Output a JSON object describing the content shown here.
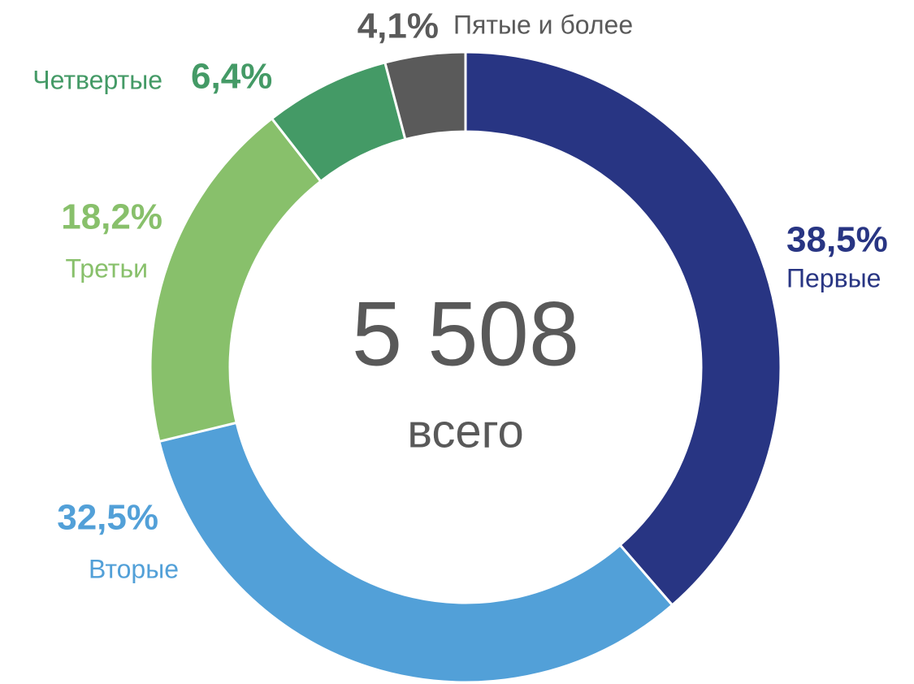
{
  "chart_data": {
    "type": "donut",
    "categories": [
      "Первые",
      "Вторые",
      "Третьи",
      "Четвертые",
      "Пятые и более"
    ],
    "values": [
      38.5,
      32.5,
      18.2,
      6.4,
      4.1
    ],
    "value_labels": [
      "38,5%",
      "32,5%",
      "18,2%",
      "6,4%",
      "4,1%"
    ],
    "colors": [
      "#283583",
      "#52a0d8",
      "#88c06b",
      "#449a66",
      "#5a5a5a"
    ],
    "center_text": "5 508",
    "center_subtext": "всего"
  }
}
